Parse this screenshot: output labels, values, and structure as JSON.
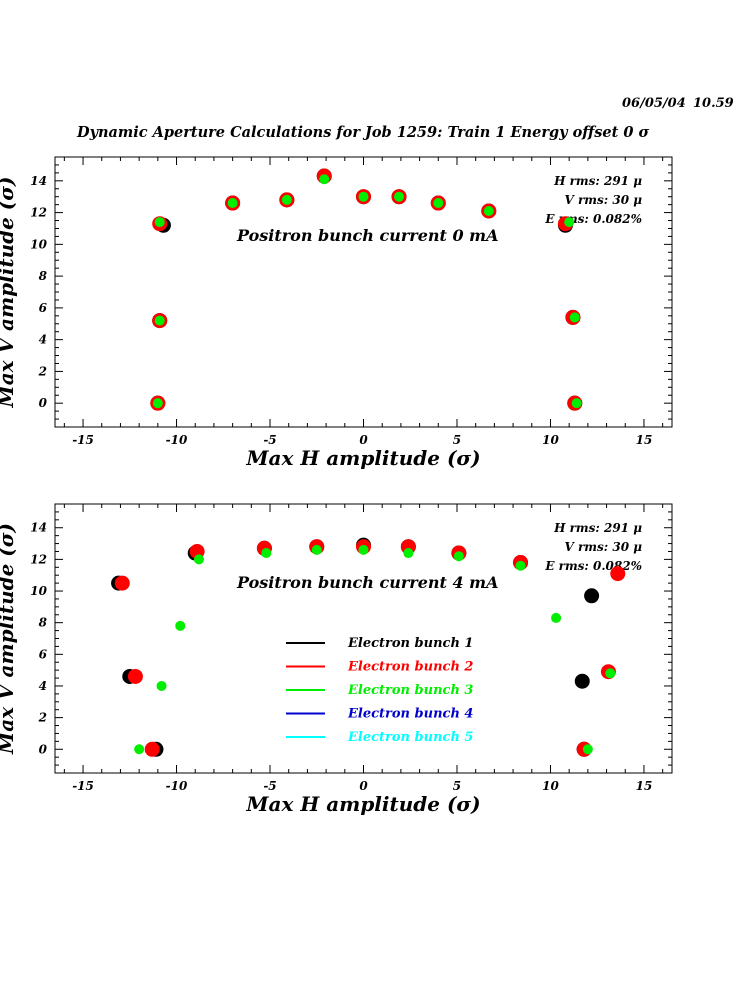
{
  "header": {
    "date": "06/05/04",
    "time": "10.59",
    "title": "Dynamic Aperture Calculations for Job 1259:  Train 1   Energy offset  0 σ"
  },
  "colors": {
    "bunch1": "#000000",
    "bunch2": "#ff0000",
    "bunch3": "#00ee00",
    "bunch4": "#0000cc",
    "bunch5": "#00ffff"
  },
  "chart_data": [
    {
      "type": "scatter",
      "annotation": "Positron bunch current  0 mA",
      "xlabel": "Max H amplitude (σ)",
      "ylabel": "Max V amplitude (σ)",
      "xlim": [
        -16.5,
        16.5
      ],
      "ylim": [
        -1.5,
        15.5
      ],
      "xticks": [
        -15,
        -10,
        -5,
        0,
        5,
        10,
        15
      ],
      "yticks": [
        0,
        2,
        4,
        6,
        8,
        10,
        12,
        14
      ],
      "stats": [
        "H rms: 291 μ",
        "V rms: 30 μ",
        "E rms: 0.082%"
      ],
      "series": [
        {
          "name": "Electron bunch 1",
          "color": "#000000",
          "size": "large",
          "points": [
            [
              -11,
              0
            ],
            [
              -10.9,
              5.2
            ],
            [
              -10.7,
              11.2
            ],
            [
              -7,
              12.6
            ],
            [
              -4.1,
              12.8
            ],
            [
              -2.1,
              14.3
            ],
            [
              0,
              13
            ],
            [
              1.9,
              13
            ],
            [
              4,
              12.6
            ],
            [
              6.7,
              12.1
            ],
            [
              10.8,
              11.2
            ],
            [
              11.2,
              5.4
            ],
            [
              11.3,
              0
            ]
          ]
        },
        {
          "name": "Electron bunch 2",
          "color": "#ff0000",
          "size": "large",
          "points": [
            [
              -11,
              0
            ],
            [
              -10.9,
              5.2
            ],
            [
              -10.9,
              11.3
            ],
            [
              -7,
              12.6
            ],
            [
              -4.1,
              12.8
            ],
            [
              -2.1,
              14.3
            ],
            [
              0,
              13
            ],
            [
              1.9,
              13
            ],
            [
              4,
              12.6
            ],
            [
              6.7,
              12.1
            ],
            [
              10.8,
              11.3
            ],
            [
              11.2,
              5.4
            ],
            [
              11.3,
              0
            ]
          ]
        },
        {
          "name": "Electron bunch 3",
          "color": "#00ee00",
          "size": "small",
          "points": [
            [
              -11,
              0
            ],
            [
              -10.9,
              5.2
            ],
            [
              -10.9,
              11.4
            ],
            [
              -7,
              12.6
            ],
            [
              -4.1,
              12.8
            ],
            [
              -2.1,
              14.1
            ],
            [
              0,
              13
            ],
            [
              1.9,
              13
            ],
            [
              4,
              12.6
            ],
            [
              6.7,
              12.1
            ],
            [
              11,
              11.4
            ],
            [
              11.3,
              5.4
            ],
            [
              11.4,
              0
            ]
          ]
        }
      ]
    },
    {
      "type": "scatter",
      "annotation": "Positron bunch current  4 mA",
      "xlabel": "Max H amplitude (σ)",
      "ylabel": "Max V amplitude (σ)",
      "xlim": [
        -16.5,
        16.5
      ],
      "ylim": [
        -1.5,
        15.5
      ],
      "xticks": [
        -15,
        -10,
        -5,
        0,
        5,
        10,
        15
      ],
      "yticks": [
        0,
        2,
        4,
        6,
        8,
        10,
        12,
        14
      ],
      "stats": [
        "H rms: 291 μ",
        "V rms: 30 μ",
        "E rms: 0.082%"
      ],
      "legend": [
        {
          "name": "Electron bunch 1",
          "color": "#000000"
        },
        {
          "name": "Electron bunch 2",
          "color": "#ff0000"
        },
        {
          "name": "Electron bunch 3",
          "color": "#00ee00"
        },
        {
          "name": "Electron bunch 4",
          "color": "#0000cc"
        },
        {
          "name": "Electron bunch 5",
          "color": "#00ffff"
        }
      ],
      "series": [
        {
          "name": "Electron bunch 1",
          "color": "#000000",
          "size": "large",
          "points": [
            [
              -11.1,
              0
            ],
            [
              -12.5,
              4.6
            ],
            [
              -13.1,
              10.5
            ],
            [
              -9,
              12.4
            ],
            [
              -5.3,
              12.7
            ],
            [
              -2.5,
              12.8
            ],
            [
              0,
              12.9
            ],
            [
              2.4,
              12.8
            ],
            [
              5.1,
              12.4
            ],
            [
              8.4,
              11.8
            ],
            [
              12.2,
              9.7
            ],
            [
              11.7,
              4.3
            ],
            [
              11.8,
              0
            ]
          ]
        },
        {
          "name": "Electron bunch 2",
          "color": "#ff0000",
          "size": "large",
          "points": [
            [
              -11.3,
              0
            ],
            [
              -12.2,
              4.6
            ],
            [
              -12.9,
              10.5
            ],
            [
              -8.9,
              12.5
            ],
            [
              -5.3,
              12.7
            ],
            [
              -2.5,
              12.8
            ],
            [
              0,
              12.8
            ],
            [
              2.4,
              12.8
            ],
            [
              5.1,
              12.4
            ],
            [
              8.4,
              11.8
            ],
            [
              13.6,
              11.1
            ],
            [
              13.1,
              4.9
            ],
            [
              11.8,
              0
            ]
          ]
        },
        {
          "name": "Electron bunch 3",
          "color": "#00ee00",
          "size": "small",
          "points": [
            [
              -12,
              0
            ],
            [
              -10.8,
              4
            ],
            [
              -9.8,
              7.8
            ],
            [
              -8.8,
              12
            ],
            [
              -5.2,
              12.4
            ],
            [
              -2.5,
              12.6
            ],
            [
              0,
              12.6
            ],
            [
              2.4,
              12.4
            ],
            [
              5.1,
              12.2
            ],
            [
              8.4,
              11.6
            ],
            [
              10.3,
              8.3
            ],
            [
              13.2,
              4.8
            ],
            [
              12,
              0
            ]
          ]
        }
      ]
    }
  ]
}
